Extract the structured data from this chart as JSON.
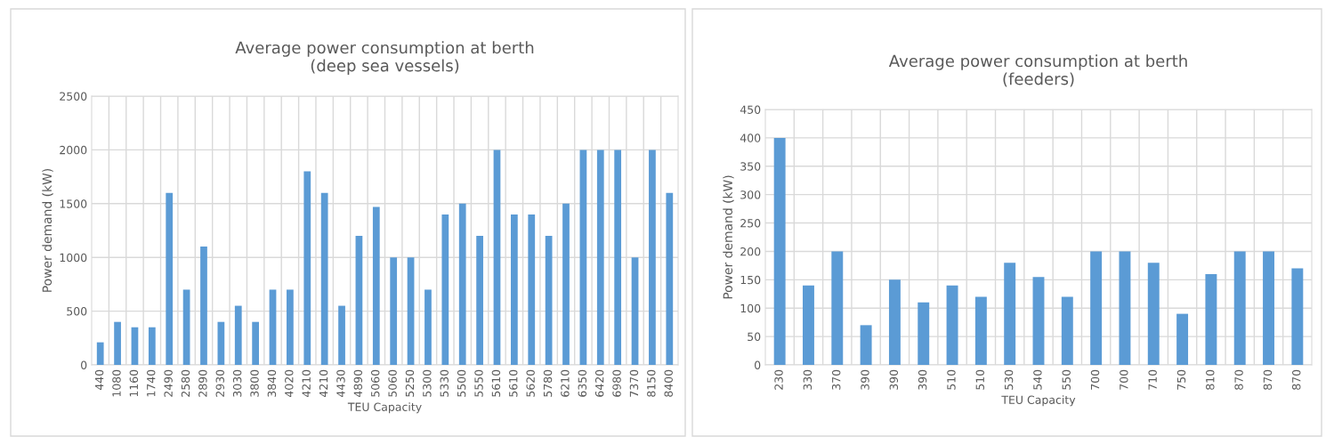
{
  "chart_data": [
    {
      "type": "bar",
      "title": "Average power consumption at berth\n(deep sea vessels)",
      "xlabel": "TEU Capacity",
      "ylabel": "Power demand (kW)",
      "categories": [
        "440",
        "1080",
        "1160",
        "1740",
        "2490",
        "2580",
        "2890",
        "2930",
        "3030",
        "3800",
        "3840",
        "4020",
        "4210",
        "4210",
        "4430",
        "4890",
        "5060",
        "5060",
        "5250",
        "5300",
        "5330",
        "5500",
        "5550",
        "5610",
        "5610",
        "5620",
        "5780",
        "6210",
        "6350",
        "6420",
        "6980",
        "7370",
        "8150",
        "8400"
      ],
      "values": [
        210,
        400,
        350,
        350,
        1600,
        700,
        1100,
        400,
        550,
        400,
        700,
        700,
        1800,
        1600,
        550,
        1200,
        1470,
        1000,
        1000,
        700,
        1400,
        1500,
        1200,
        2000,
        1400,
        1400,
        1200,
        1500,
        2000,
        2000,
        2000,
        1000,
        2000,
        1600
      ],
      "color": "#5b9bd5",
      "ylim": [
        0,
        2500
      ],
      "yticks": [
        0,
        500,
        1000,
        1500,
        2000,
        2500
      ],
      "grid": true
    },
    {
      "type": "bar",
      "title": "Average power consumption at berth\n(feeders)",
      "xlabel": "TEU Capacity",
      "ylabel": "Power demand (kW)",
      "categories": [
        "230",
        "330",
        "370",
        "390",
        "390",
        "390",
        "510",
        "510",
        "530",
        "540",
        "550",
        "700",
        "700",
        "710",
        "750",
        "810",
        "870",
        "870",
        "870"
      ],
      "values": [
        400,
        140,
        200,
        70,
        150,
        110,
        140,
        120,
        180,
        155,
        120,
        200,
        200,
        180,
        90,
        160,
        200,
        200,
        170
      ],
      "color": "#5b9bd5",
      "ylim": [
        0,
        450
      ],
      "yticks": [
        0,
        50,
        100,
        150,
        200,
        250,
        300,
        350,
        400,
        450
      ],
      "grid": true
    }
  ]
}
